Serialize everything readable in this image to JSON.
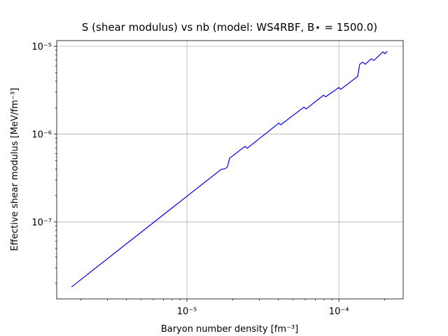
{
  "chart_data": {
    "type": "line",
    "title": "S (shear modulus) vs nb (model: WS4RBF, B⋆ = 1500.0)",
    "x_label": "Baryon number density [fm⁻³]",
    "y_label": "Effective shear modulus [MeV/fm⁻³]",
    "log_x": true,
    "log_y": true,
    "grid": true,
    "xlim": [
      1.39e-06,
      0.000265
    ],
    "ylim": [
      1.33e-08,
      1.16e-05
    ],
    "xticks": [
      {
        "value": 1e-05,
        "label": "10⁻⁵"
      },
      {
        "value": 0.0001,
        "label": "10⁻⁴"
      }
    ],
    "yticks": [
      {
        "value": 1e-07,
        "label": "10⁻⁷"
      },
      {
        "value": 1e-06,
        "label": "10⁻⁶"
      },
      {
        "value": 1e-05,
        "label": "10⁻⁵"
      }
    ],
    "color": "#0000ff",
    "x": [
      1.74e-06,
      1.68e-05,
      1.79e-05,
      1.85e-05,
      1.91e-05,
      2.41e-05,
      2.49e-05,
      4.02e-05,
      4.15e-05,
      5.89e-05,
      6.08e-05,
      7.92e-05,
      8.18e-05,
      0.0001,
      0.000103,
      0.000133,
      0.000137,
      0.000143,
      0.000149,
      0.000163,
      0.00017,
      0.000195,
      0.000201,
      0.000208
    ],
    "values": [
      1.82e-08,
      3.97e-07,
      4.04e-07,
      4.26e-07,
      5.31e-07,
      7.26e-07,
      6.9e-07,
      1.33e-06,
      1.28e-06,
      2.03e-06,
      1.93e-06,
      2.77e-06,
      2.66e-06,
      3.39e-06,
      3.24e-06,
      4.54e-06,
      6.21e-06,
      6.6e-06,
      6.25e-06,
      7.19e-06,
      6.9e-06,
      8.63e-06,
      8.2e-06,
      8.8e-06
    ]
  }
}
